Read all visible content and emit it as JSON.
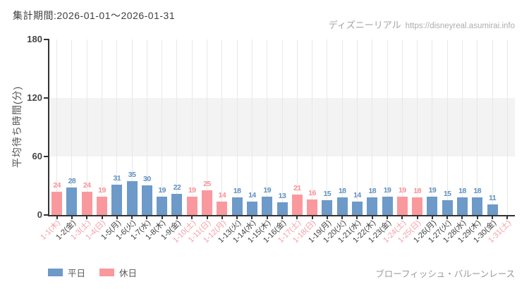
{
  "header": {
    "period_label": "集計期間:2026-01-01〜2026-01-31",
    "watermark_site": "ディズニーリアル",
    "watermark_url": "https://disneyreal.asumirai.info"
  },
  "footer": {
    "attraction_name": "ブローフィッシュ・バルーンレース"
  },
  "legend": [
    {
      "label": "平日",
      "type": "weekday",
      "color": "#6d9ac8"
    },
    {
      "label": "休日",
      "type": "holiday",
      "color": "#fa999d"
    }
  ],
  "colors": {
    "weekday_bar": "#6d9ac8",
    "holiday_bar": "#fa999d",
    "weekday_value_label": "#5e8fc0",
    "holiday_value_label": "#f98f95",
    "weekday_axis_label": "#404040",
    "holiday_axis_label": "#f49fa6",
    "axis_line": "#333333",
    "band_fill": "#f3f3f3",
    "gridline": "#e8e8e8"
  },
  "chart_data": {
    "type": "bar",
    "title": "集計期間:2026-01-01〜2026-01-31",
    "xlabel": "",
    "ylabel": "平均待ち時間(分)",
    "ylim": [
      0,
      180
    ],
    "yticks": [
      0,
      60,
      120,
      180
    ],
    "shaded_band": [
      60,
      120
    ],
    "grid": "vertical-per-category",
    "legend_position": "bottom-left",
    "categories": [
      "1-1(木)",
      "1-2(金)",
      "1-3(土)",
      "1-4(日)",
      "1-5(月)",
      "1-6(火)",
      "1-7(水)",
      "1-8(木)",
      "1-9(金)",
      "1-10(土)",
      "1-11(日)",
      "1-12(月)",
      "1-13(火)",
      "1-14(水)",
      "1-15(木)",
      "1-16(金)",
      "1-17(土)",
      "1-18(日)",
      "1-19(月)",
      "1-20(火)",
      "1-21(水)",
      "1-22(木)",
      "1-23(金)",
      "1-24(土)",
      "1-25(日)",
      "1-26(月)",
      "1-27(火)",
      "1-28(水)",
      "1-29(木)",
      "1-30(金)",
      "1-31(土)"
    ],
    "values": [
      24,
      28,
      24,
      19,
      31,
      35,
      30,
      19,
      22,
      19,
      25,
      14,
      18,
      14,
      19,
      13,
      21,
      16,
      15,
      18,
      14,
      18,
      19,
      19,
      18,
      19,
      15,
      18,
      18,
      11,
      null
    ],
    "day_types": [
      "holiday",
      "weekday",
      "holiday",
      "holiday",
      "weekday",
      "weekday",
      "weekday",
      "weekday",
      "weekday",
      "holiday",
      "holiday",
      "holiday",
      "weekday",
      "weekday",
      "weekday",
      "weekday",
      "holiday",
      "holiday",
      "weekday",
      "weekday",
      "weekday",
      "weekday",
      "weekday",
      "holiday",
      "holiday",
      "weekday",
      "weekday",
      "weekday",
      "weekday",
      "weekday",
      "holiday"
    ]
  }
}
